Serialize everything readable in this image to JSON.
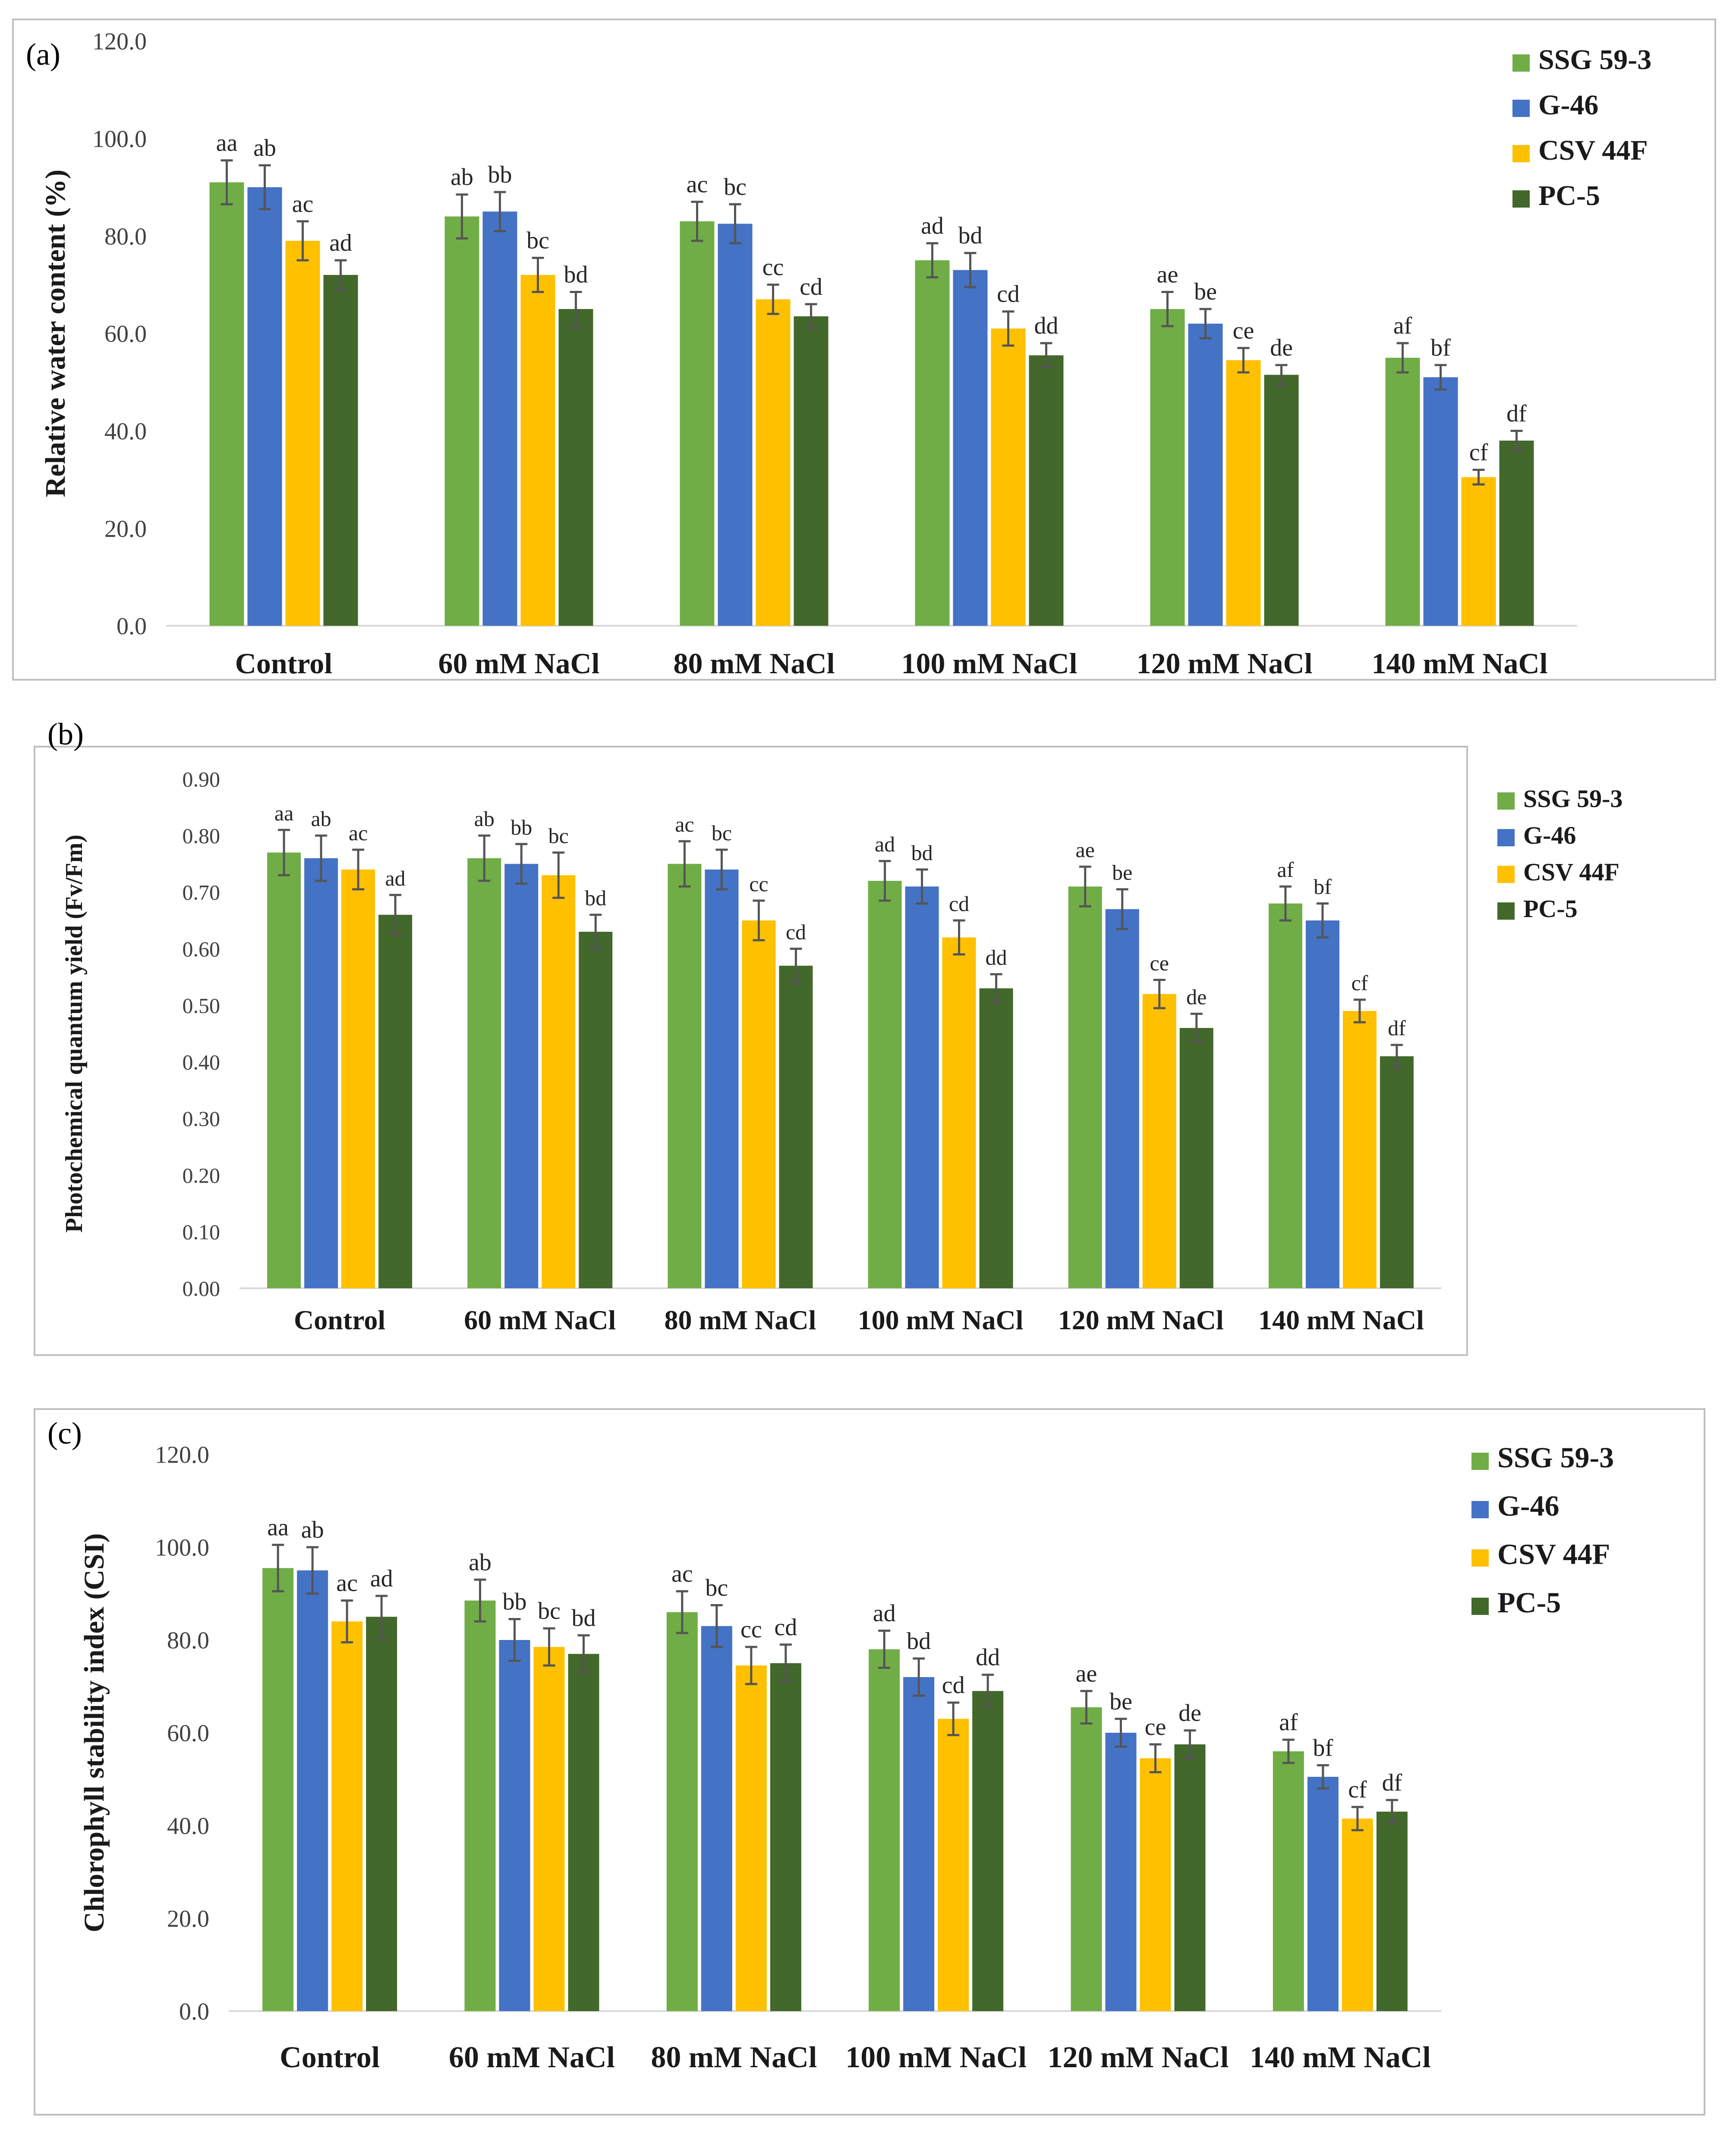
{
  "colors": {
    "SSG 59-3": "#70ad47",
    "G-46": "#4472c4",
    "CSV 44F": "#ffc000",
    "PC-5": "#43682b"
  },
  "chart_data": [
    {
      "type": "bar",
      "panel_label": "(a)",
      "ylabel": "Relative water content (%)",
      "ylim": [
        0,
        120
      ],
      "yticks": [
        "0.0",
        "20.0",
        "40.0",
        "60.0",
        "80.0",
        "100.0",
        "120.0"
      ],
      "categories": [
        "Control",
        "60 mM NaCl",
        "80 mM NaCl",
        "100 mM NaCl",
        "120 mM NaCl",
        "140 mM NaCl"
      ],
      "legend_position": "top-right",
      "series": [
        {
          "name": "SSG 59-3",
          "values": [
            91.0,
            84.0,
            83.0,
            75.0,
            65.0,
            55.0
          ],
          "errors": [
            4.5,
            4.5,
            4.0,
            3.5,
            3.5,
            3.0
          ],
          "labels": [
            "aa",
            "ab",
            "ac",
            "ad",
            "ae",
            "af"
          ]
        },
        {
          "name": "G-46",
          "values": [
            90.0,
            85.0,
            82.5,
            73.0,
            62.0,
            51.0
          ],
          "errors": [
            4.5,
            4.0,
            4.0,
            3.5,
            3.0,
            2.5
          ],
          "labels": [
            "ab",
            "bb",
            "bc",
            "bd",
            "be",
            "bf"
          ]
        },
        {
          "name": "CSV 44F",
          "values": [
            79.0,
            72.0,
            67.0,
            61.0,
            54.5,
            30.5
          ],
          "errors": [
            4.0,
            3.5,
            3.0,
            3.5,
            2.5,
            1.5
          ],
          "labels": [
            "ac",
            "bc",
            "cc",
            "cd",
            "ce",
            "cf"
          ]
        },
        {
          "name": "PC-5",
          "values": [
            72.0,
            65.0,
            63.5,
            55.5,
            51.5,
            38.0
          ],
          "errors": [
            3.0,
            3.5,
            2.5,
            2.5,
            2.0,
            2.0
          ],
          "labels": [
            "ad",
            "bd",
            "cd",
            "dd",
            "de",
            "df"
          ]
        }
      ]
    },
    {
      "type": "bar",
      "panel_label": "(b)",
      "ylabel": "Photochemical quantum yield (Fv/Fm)",
      "ylim": [
        0,
        0.9
      ],
      "yticks": [
        "0.00",
        "0.10",
        "0.20",
        "0.30",
        "0.40",
        "0.50",
        "0.60",
        "0.70",
        "0.80",
        "0.90"
      ],
      "categories": [
        "Control",
        "60 mM NaCl",
        "80 mM NaCl",
        "100 mM NaCl",
        "120 mM NaCl",
        "140 mM NaCl"
      ],
      "legend_position": "right",
      "series": [
        {
          "name": "SSG 59-3",
          "values": [
            0.77,
            0.76,
            0.75,
            0.72,
            0.71,
            0.68
          ],
          "errors": [
            0.04,
            0.04,
            0.04,
            0.035,
            0.035,
            0.03
          ],
          "labels": [
            "aa",
            "ab",
            "ac",
            "ad",
            "ae",
            "af"
          ]
        },
        {
          "name": "G-46",
          "values": [
            0.76,
            0.75,
            0.74,
            0.71,
            0.67,
            0.65
          ],
          "errors": [
            0.04,
            0.035,
            0.035,
            0.03,
            0.035,
            0.03
          ],
          "labels": [
            "ab",
            "bb",
            "bc",
            "bd",
            "be",
            "bf"
          ]
        },
        {
          "name": "CSV 44F",
          "values": [
            0.74,
            0.73,
            0.65,
            0.62,
            0.52,
            0.49
          ],
          "errors": [
            0.035,
            0.04,
            0.035,
            0.03,
            0.025,
            0.02
          ],
          "labels": [
            "ac",
            "bc",
            "cc",
            "cd",
            "ce",
            "cf"
          ]
        },
        {
          "name": "PC-5",
          "values": [
            0.66,
            0.63,
            0.57,
            0.53,
            0.46,
            0.41
          ],
          "errors": [
            0.035,
            0.03,
            0.03,
            0.025,
            0.025,
            0.02
          ],
          "labels": [
            "ad",
            "bd",
            "cd",
            "dd",
            "de",
            "df"
          ]
        }
      ]
    },
    {
      "type": "bar",
      "panel_label": "(c)",
      "ylabel": "Chlorophyll stability index (CSI)",
      "ylim": [
        0,
        120
      ],
      "yticks": [
        "0.0",
        "20.0",
        "40.0",
        "60.0",
        "80.0",
        "100.0",
        "120.0"
      ],
      "categories": [
        "Control",
        "60 mM NaCl",
        "80 mM NaCl",
        "100 mM NaCl",
        "120 mM NaCl",
        "140 mM NaCl"
      ],
      "legend_position": "top-right",
      "series": [
        {
          "name": "SSG 59-3",
          "values": [
            95.5,
            88.5,
            86.0,
            78.0,
            65.5,
            56.0
          ],
          "errors": [
            5.0,
            4.5,
            4.5,
            4.0,
            3.5,
            2.5
          ],
          "labels": [
            "aa",
            "ab",
            "ac",
            "ad",
            "ae",
            "af"
          ]
        },
        {
          "name": "G-46",
          "values": [
            95.0,
            80.0,
            83.0,
            72.0,
            60.0,
            50.5
          ],
          "errors": [
            5.0,
            4.5,
            4.5,
            4.0,
            3.0,
            2.5
          ],
          "labels": [
            "ab",
            "bb",
            "bc",
            "bd",
            "be",
            "bf"
          ]
        },
        {
          "name": "CSV 44F",
          "values": [
            84.0,
            78.5,
            74.5,
            63.0,
            54.5,
            41.5
          ],
          "errors": [
            4.5,
            4.0,
            4.0,
            3.5,
            3.0,
            2.5
          ],
          "labels": [
            "ac",
            "bc",
            "cc",
            "cd",
            "ce",
            "cf"
          ]
        },
        {
          "name": "PC-5",
          "values": [
            85.0,
            77.0,
            75.0,
            69.0,
            57.5,
            43.0
          ],
          "errors": [
            4.5,
            4.0,
            4.0,
            3.5,
            3.0,
            2.5
          ],
          "labels": [
            "ad",
            "bd",
            "cd",
            "dd",
            "de",
            "df"
          ]
        }
      ]
    }
  ]
}
